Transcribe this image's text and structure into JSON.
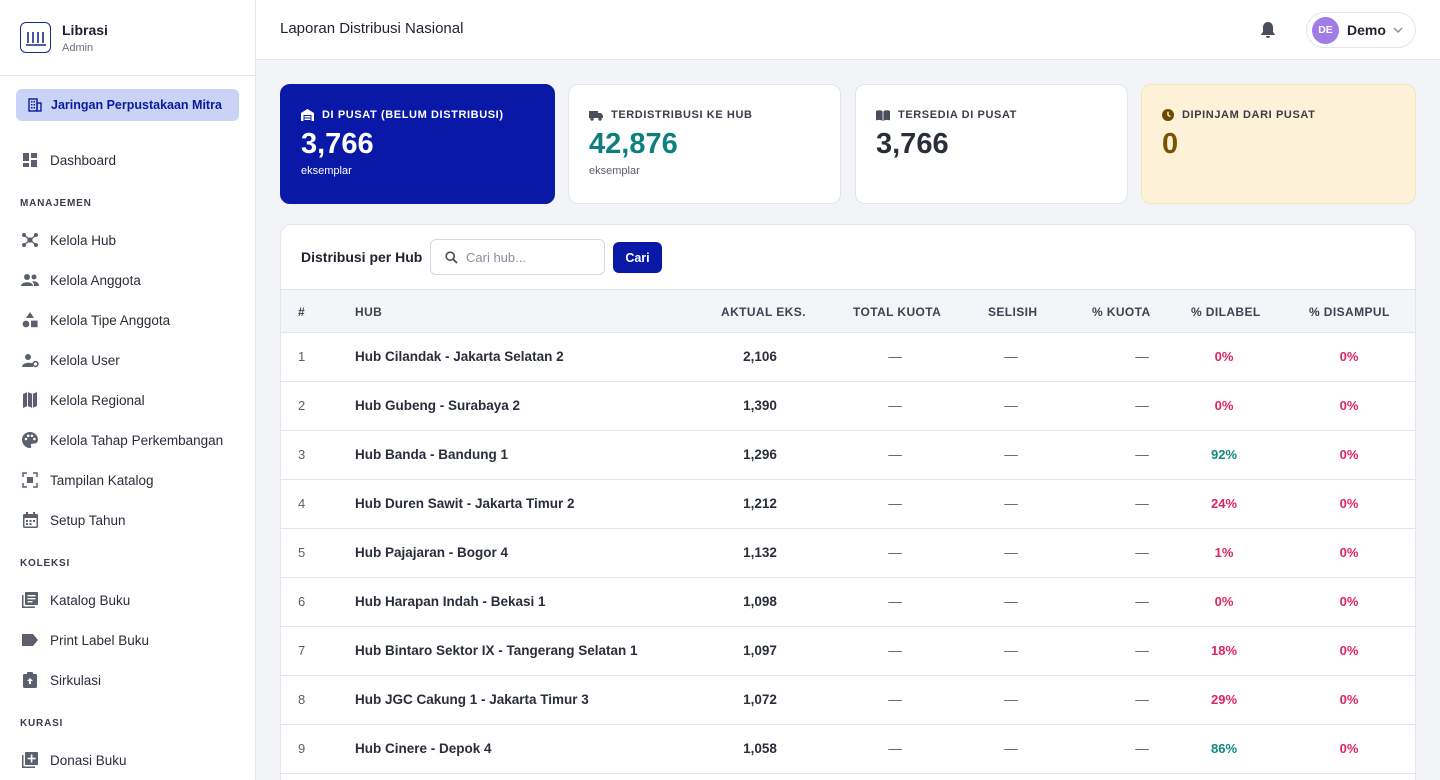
{
  "brand": {
    "name": "Librasi",
    "role": "Admin",
    "logo_icon": "library-columns-icon"
  },
  "org_switcher": {
    "label": "Jaringan Perpustakaan Mitra",
    "icon": "building-icon"
  },
  "nav": {
    "dashboard": "Dashboard",
    "section_manajemen": "MANAJEMEN",
    "kelola_hub": "Kelola Hub",
    "kelola_anggota": "Kelola Anggota",
    "kelola_tipe_anggota": "Kelola Tipe Anggota",
    "kelola_user": "Kelola User",
    "kelola_regional": "Kelola Regional",
    "kelola_tahap": "Kelola Tahap Perkembangan",
    "tampilan_katalog": "Tampilan Katalog",
    "setup_tahun": "Setup Tahun",
    "section_koleksi": "KOLEKSI",
    "katalog_buku": "Katalog Buku",
    "print_label": "Print Label Buku",
    "sirkulasi": "Sirkulasi",
    "section_kurasi": "KURASI",
    "donasi_buku": "Donasi Buku"
  },
  "header": {
    "title": "Laporan Distribusi Nasional",
    "user_initials": "DE",
    "user_name": "Demo"
  },
  "stats": [
    {
      "label": "DI PUSAT (BELUM DISTRIBUSI)",
      "value": "3,766",
      "unit": "eksemplar",
      "icon": "warehouse-icon",
      "color": "#0a18a8"
    },
    {
      "label": "TERDISTRIBUSI KE HUB",
      "value": "42,876",
      "unit": "eksemplar",
      "icon": "truck-icon",
      "color": "#0e7f7f"
    },
    {
      "label": "TERSEDIA DI PUSAT",
      "value": "3,766",
      "icon": "book-open-icon",
      "color": "#2a2d3a"
    },
    {
      "label": "DIPINJAM DARI PUSAT",
      "value": "0",
      "icon": "clock-icon",
      "color": "#7a5200"
    }
  ],
  "table": {
    "title": "Distribusi per Hub",
    "search_placeholder": "Cari hub...",
    "search_button": "Cari",
    "columns": {
      "no": "#",
      "hub": "HUB",
      "aktual": "AKTUAL EKS.",
      "kuota": "TOTAL KUOTA",
      "selisih": "SELISIH",
      "pct_kuota": "% KUOTA",
      "pct_label": "% DILABEL",
      "pct_sampul": "% DISAMPUL"
    },
    "rows": [
      {
        "no": "1",
        "hub": "Hub Cilandak - Jakarta Selatan 2",
        "aktual": "2,106",
        "kuota": "—",
        "selisih": "—",
        "pct_kuota": "—",
        "pct_label": "0%",
        "pct_sampul": "0%"
      },
      {
        "no": "2",
        "hub": "Hub Gubeng - Surabaya 2",
        "aktual": "1,390",
        "kuota": "—",
        "selisih": "—",
        "pct_kuota": "—",
        "pct_label": "0%",
        "pct_sampul": "0%"
      },
      {
        "no": "3",
        "hub": "Hub Banda - Bandung 1",
        "aktual": "1,296",
        "kuota": "—",
        "selisih": "—",
        "pct_kuota": "—",
        "pct_label": "92%",
        "pct_sampul": "0%"
      },
      {
        "no": "4",
        "hub": "Hub Duren Sawit - Jakarta Timur 2",
        "aktual": "1,212",
        "kuota": "—",
        "selisih": "—",
        "pct_kuota": "—",
        "pct_label": "24%",
        "pct_sampul": "0%"
      },
      {
        "no": "5",
        "hub": "Hub Pajajaran - Bogor 4",
        "aktual": "1,132",
        "kuota": "—",
        "selisih": "—",
        "pct_kuota": "—",
        "pct_label": "1%",
        "pct_sampul": "0%"
      },
      {
        "no": "6",
        "hub": "Hub Harapan Indah - Bekasi 1",
        "aktual": "1,098",
        "kuota": "—",
        "selisih": "—",
        "pct_kuota": "—",
        "pct_label": "0%",
        "pct_sampul": "0%"
      },
      {
        "no": "7",
        "hub": "Hub Bintaro Sektor IX - Tangerang Selatan 1",
        "aktual": "1,097",
        "kuota": "—",
        "selisih": "—",
        "pct_kuota": "—",
        "pct_label": "18%",
        "pct_sampul": "0%"
      },
      {
        "no": "8",
        "hub": "Hub JGC Cakung 1 - Jakarta Timur 3",
        "aktual": "1,072",
        "kuota": "—",
        "selisih": "—",
        "pct_kuota": "—",
        "pct_label": "29%",
        "pct_sampul": "0%"
      },
      {
        "no": "9",
        "hub": "Hub Cinere - Depok 4",
        "aktual": "1,058",
        "kuota": "—",
        "selisih": "—",
        "pct_kuota": "—",
        "pct_label": "86%",
        "pct_sampul": "0%"
      }
    ]
  },
  "colors": {
    "accent": "#0a18a8",
    "pct_low": "#e0245e",
    "pct_high": "#0e8a7f"
  }
}
